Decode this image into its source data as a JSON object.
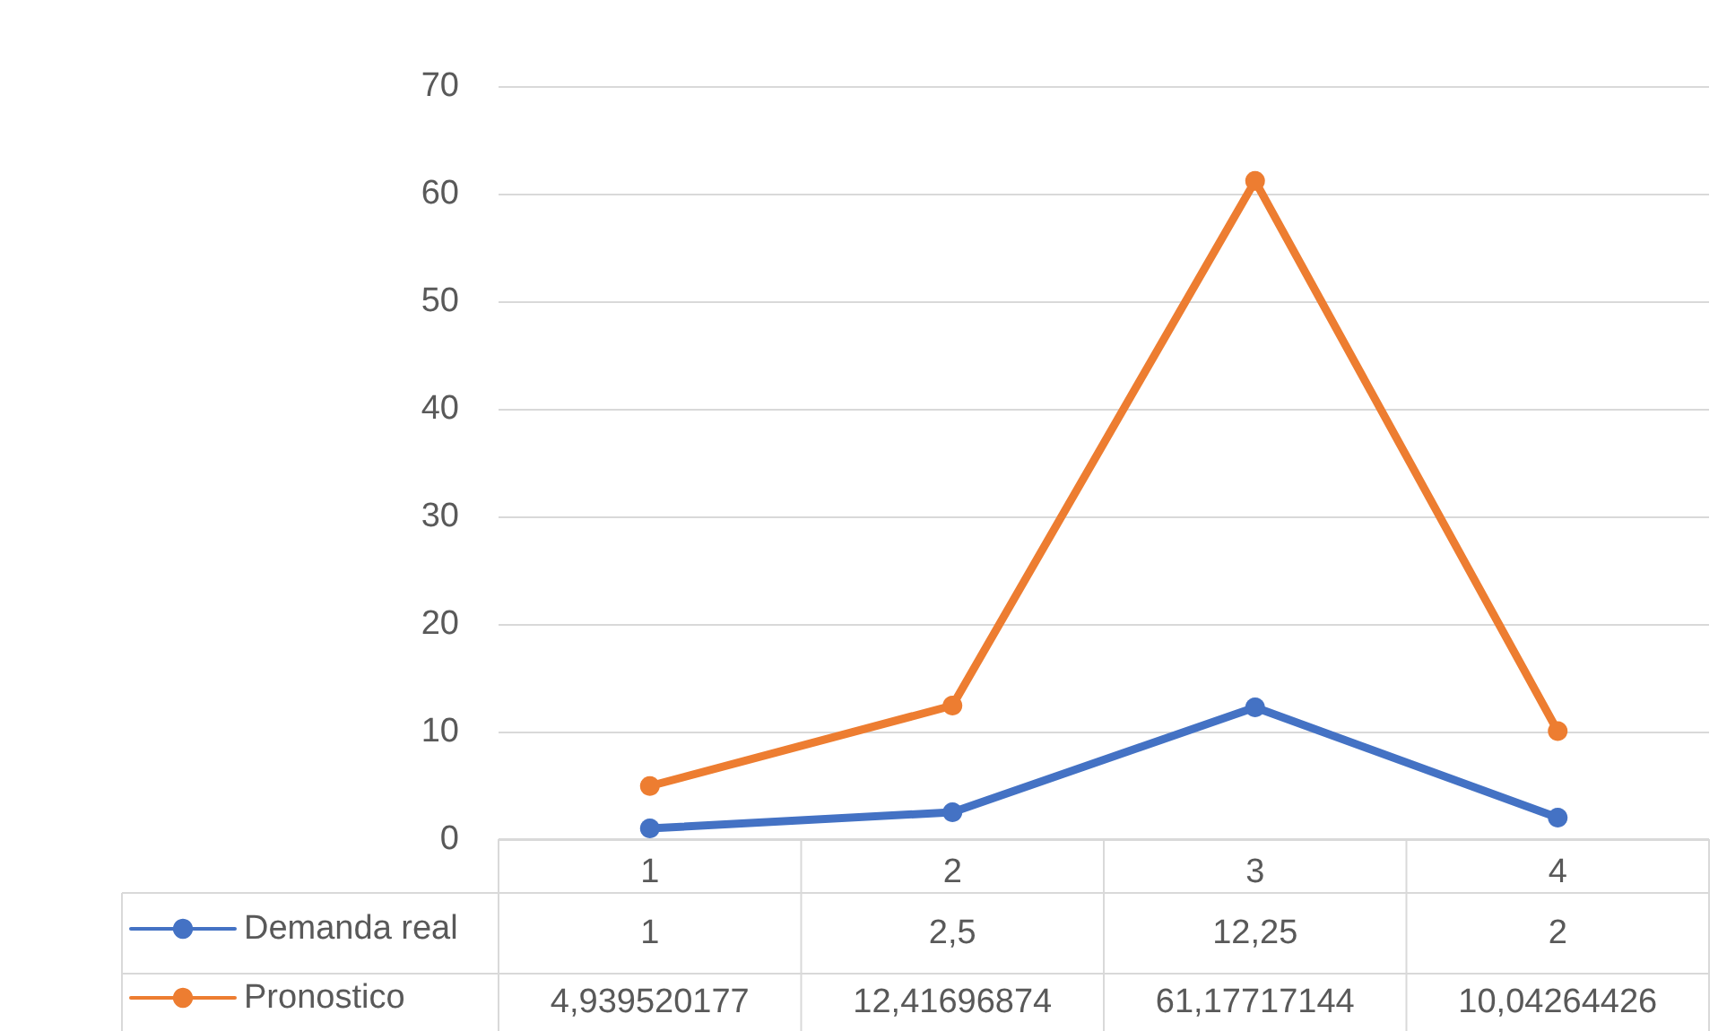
{
  "chart_data": {
    "type": "line",
    "categories": [
      "1",
      "2",
      "3",
      "4"
    ],
    "series": [
      {
        "name": "Demanda real",
        "color": "#4472c4",
        "values": [
          1,
          2.5,
          12.25,
          2
        ],
        "value_labels": [
          "1",
          "2,5",
          "12,25",
          "2"
        ]
      },
      {
        "name": "Pronostico",
        "color": "#ed7d31",
        "values": [
          4.939520177,
          12.41696874,
          61.17717144,
          10.04264426
        ],
        "value_labels": [
          "4,939520177",
          "12,41696874",
          "61,17717144",
          "10,04264426"
        ]
      }
    ],
    "ylim": [
      0,
      70
    ],
    "yticks": [
      0,
      10,
      20,
      30,
      40,
      50,
      60,
      70
    ],
    "grid": "y",
    "legend": "bottom",
    "marker": "circle",
    "line_style": "solid"
  }
}
